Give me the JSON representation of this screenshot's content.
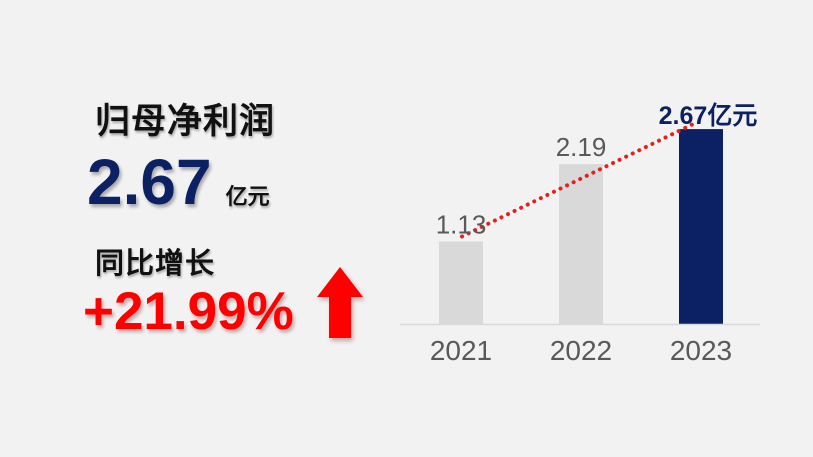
{
  "page": {
    "background": "#f2f2f2"
  },
  "left_panel": {
    "title": "归母净利润",
    "value": "2.67",
    "unit": "亿元",
    "growth_label": "同比增长",
    "growth_value": "+21.99%",
    "arrow_icon": "block-up-arrow",
    "value_color": "#0b2163",
    "growth_color": "#ff0000"
  },
  "chart_data": {
    "type": "bar",
    "title": "",
    "xlabel": "",
    "ylabel": "",
    "unit": "亿元",
    "categories": [
      "2021",
      "2022",
      "2023"
    ],
    "values": [
      1.13,
      2.19,
      2.67
    ],
    "value_labels": [
      "1.13",
      "2.19",
      "2.67亿元"
    ],
    "highlight_index": 2,
    "ylim": [
      0,
      3
    ],
    "grid": false,
    "legend": false,
    "bar_color": "#d9d9d9",
    "highlight_color": "#0b2163",
    "value_label_color": "#595959",
    "highlight_label_color": "#0b2163",
    "axis_label_color": "#595959",
    "axis_line_color": "#d9d9d9",
    "trend_line": {
      "style": "dotted",
      "color": "#e2231a",
      "from": "2021",
      "to": "2023"
    }
  }
}
